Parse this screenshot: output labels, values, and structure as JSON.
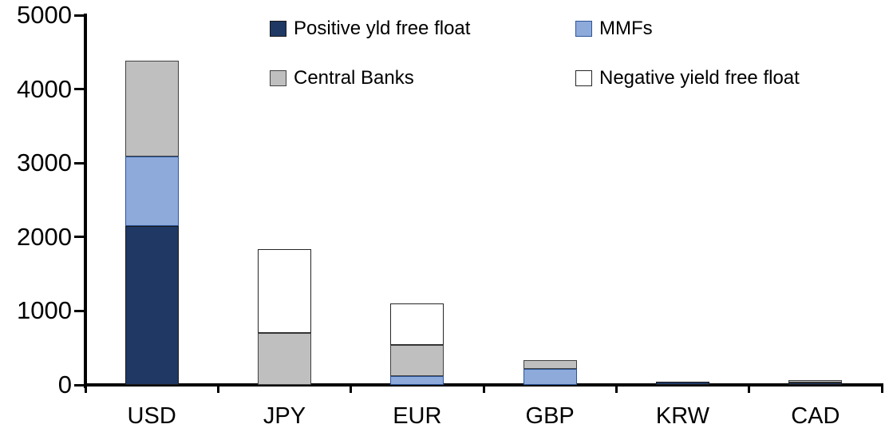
{
  "chart_data": {
    "type": "bar",
    "stacked": true,
    "title": "",
    "xlabel": "",
    "ylabel": "",
    "grid": false,
    "ylim": [
      0,
      5000
    ],
    "yticks": [
      0,
      1000,
      2000,
      3000,
      4000,
      5000
    ],
    "categories": [
      "USD",
      "JPY",
      "EUR",
      "GBP",
      "KRW",
      "CAD"
    ],
    "series": [
      {
        "name": "Positive yld free float",
        "color": "#1F3864",
        "border": "#1a1a1a",
        "values": [
          2150,
          0,
          0,
          0,
          45,
          30
        ]
      },
      {
        "name": "MMFs",
        "color": "#8EAADB",
        "border": "#2E5597",
        "values": [
          940,
          0,
          120,
          220,
          0,
          0
        ]
      },
      {
        "name": "Central Banks",
        "color": "#BFBFBF",
        "border": "#404040",
        "values": [
          1290,
          700,
          425,
          120,
          0,
          35
        ]
      },
      {
        "name": "Negative yield free float",
        "color": "#FFFFFF",
        "border": "#262626",
        "values": [
          0,
          1140,
          555,
          0,
          0,
          0
        ]
      }
    ],
    "totals": [
      4380,
      1840,
      1100,
      340,
      45,
      65
    ],
    "legend_position": "top",
    "legend_grid": [
      [
        "Positive yld free float",
        "MMFs"
      ],
      [
        "Central Banks",
        "Negative yield free float"
      ]
    ]
  },
  "layout_colors": {
    "axis": "#000000",
    "text": "#000000",
    "background": "#ffffff"
  }
}
